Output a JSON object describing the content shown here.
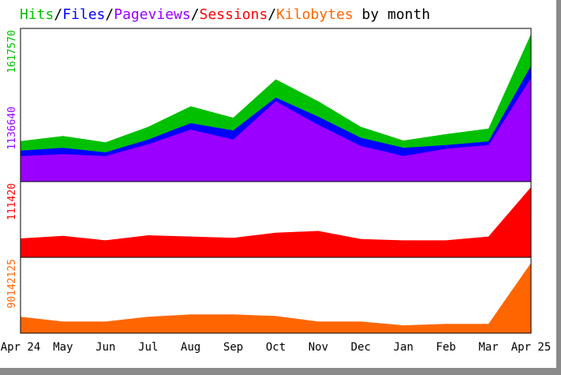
{
  "title": {
    "hits": "Hits",
    "files": "Files",
    "pageviews": "Pageviews",
    "sessions": "Sessions",
    "kilobytes": "Kilobytes",
    "sep": "/",
    "suffix": " by month"
  },
  "colors": {
    "hits": "#00c000",
    "files": "#0000ff",
    "pageviews": "#9900ff",
    "sessions": "#ff0000",
    "kilobytes": "#ff6600",
    "text": "#000000",
    "frame": "#8a8a8a"
  },
  "chart_data": [
    {
      "type": "area",
      "panel": "top",
      "categories": [
        "Apr 24",
        "May",
        "Jun",
        "Jul",
        "Aug",
        "Sep",
        "Oct",
        "Nov",
        "Dec",
        "Jan",
        "Feb",
        "Mar",
        "Apr 25"
      ],
      "y_tick_labels": [
        "1617570",
        "1136640"
      ],
      "ylim": [
        0,
        1617570
      ],
      "series": [
        {
          "name": "Hits",
          "key": "hits",
          "values": [
            443000,
            500000,
            430000,
            600000,
            825000,
            700000,
            1120000,
            880000,
            600000,
            450000,
            520000,
            580000,
            1617570
          ]
        },
        {
          "name": "Files",
          "key": "files",
          "values": [
            340000,
            370000,
            320000,
            460000,
            640000,
            560000,
            920000,
            710000,
            480000,
            370000,
            400000,
            440000,
            1270000
          ]
        },
        {
          "name": "Pageviews",
          "key": "pageviews",
          "values": [
            280000,
            300000,
            280000,
            410000,
            570000,
            460000,
            880000,
            620000,
            390000,
            280000,
            360000,
            400000,
            1136640
          ]
        }
      ]
    },
    {
      "type": "area",
      "panel": "middle",
      "categories": [
        "Apr 24",
        "May",
        "Jun",
        "Jul",
        "Aug",
        "Sep",
        "Oct",
        "Nov",
        "Dec",
        "Jan",
        "Feb",
        "Mar",
        "Apr 25"
      ],
      "y_tick_labels": [
        "111420"
      ],
      "ylim": [
        0,
        111420
      ],
      "series": [
        {
          "name": "Sessions",
          "key": "sessions",
          "values": [
            30000,
            34000,
            27000,
            35000,
            33000,
            31000,
            39000,
            42000,
            29000,
            27000,
            27000,
            33000,
            111420
          ]
        }
      ]
    },
    {
      "type": "area",
      "panel": "bottom",
      "categories": [
        "Apr 24",
        "May",
        "Jun",
        "Jul",
        "Aug",
        "Sep",
        "Oct",
        "Nov",
        "Dec",
        "Jan",
        "Feb",
        "Mar",
        "Apr 25"
      ],
      "y_tick_labels": [
        "90142125"
      ],
      "ylim": [
        0,
        90142125
      ],
      "series": [
        {
          "name": "Kilobytes",
          "key": "kilobytes",
          "values": [
            21000000,
            15000000,
            15000000,
            21000000,
            24000000,
            24000000,
            22000000,
            15000000,
            15000000,
            10000000,
            12000000,
            12000000,
            90142125
          ]
        }
      ]
    }
  ]
}
